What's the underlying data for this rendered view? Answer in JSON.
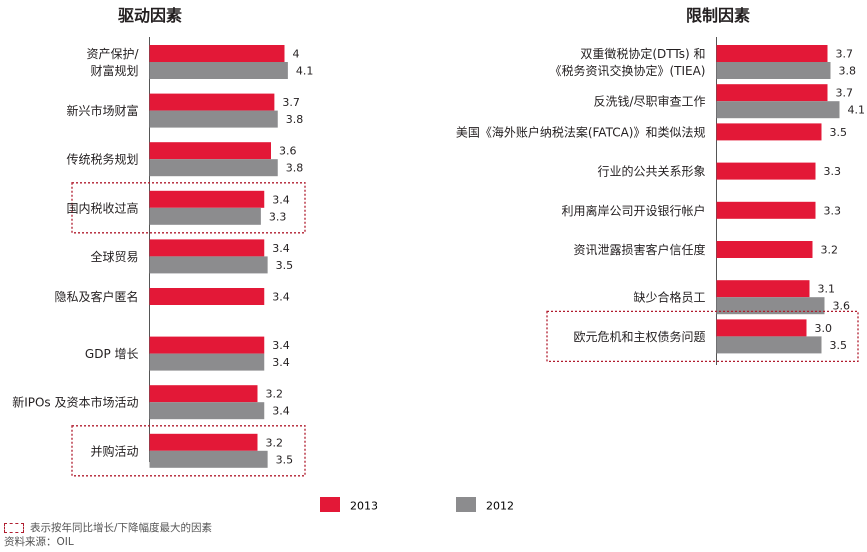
{
  "colors": {
    "series_2013": "#e31837",
    "series_2012": "#8c8c8e",
    "highlight": "#b01c2e",
    "axis": "#555555"
  },
  "legend": {
    "label_2013": "2013",
    "label_2012": "2012"
  },
  "footnote": {
    "highlight_note": "表示按年同比增长/下降幅度最大的因素",
    "source": "资料来源：OIL"
  },
  "chart_data": [
    {
      "type": "bar",
      "orientation": "horizontal",
      "title": "驱动因素",
      "categories": [
        [
          "资产保护/",
          "财富规划"
        ],
        [
          "新兴市场财富"
        ],
        [
          "传统税务规划"
        ],
        [
          "国内税收过高"
        ],
        [
          "全球贸易"
        ],
        [
          "隐私及客户匿名"
        ],
        [
          "GDP 增长"
        ],
        [
          "新IPOs 及资本市场活动"
        ],
        [
          "并购活动"
        ]
      ],
      "series": [
        {
          "name": "2013",
          "values": [
            4,
            3.7,
            3.6,
            3.4,
            3.4,
            3.4,
            3.4,
            3.2,
            3.2
          ]
        },
        {
          "name": "2012",
          "values": [
            4.1,
            3.8,
            3.8,
            3.3,
            3.5,
            null,
            3.4,
            3.4,
            3.5
          ]
        }
      ],
      "value_labels": {
        "2013": [
          "4",
          "3.7",
          "3.6",
          "3.4",
          "3.4",
          "3.4",
          "3.4",
          "3.2",
          "3.2"
        ],
        "2012": [
          "4.1",
          "3.8",
          "3.8",
          "3.3",
          "3.5",
          "",
          "3.4",
          "3.4",
          "3.5"
        ]
      },
      "highlighted": [
        3,
        8
      ],
      "xlim": [
        0,
        4.5
      ]
    },
    {
      "type": "bar",
      "orientation": "horizontal",
      "title": "限制因素",
      "categories": [
        [
          "双重徵税协定(DTTs) 和",
          "《税务资讯交换协定》(TIEA)"
        ],
        [
          "反洗钱/尽职审查工作"
        ],
        [
          "美国《海外账户纳税法案(FATCA)》和类似法规"
        ],
        [
          "行业的公共关系形象"
        ],
        [
          "利用离岸公司开设银行帐户"
        ],
        [
          "资讯泄露损害客户信任度"
        ],
        [
          "缺少合格员工"
        ],
        [
          "欧元危机和主权债务问题"
        ]
      ],
      "series": [
        {
          "name": "2013",
          "values": [
            3.7,
            3.7,
            3.5,
            3.3,
            3.3,
            3.2,
            3.1,
            3.0
          ]
        },
        {
          "name": "2012",
          "values": [
            3.8,
            4.1,
            null,
            null,
            null,
            null,
            3.6,
            3.5
          ]
        }
      ],
      "value_labels": {
        "2013": [
          "3.7",
          "3.7",
          "3.5",
          "3.3",
          "3.3",
          "3.2",
          "3.1",
          "3.0"
        ],
        "2012": [
          "3.8",
          "4.1",
          "",
          "",
          "",
          "",
          "3.6",
          "3.5"
        ]
      },
      "highlighted": [
        7
      ],
      "xlim": [
        0,
        4.5
      ]
    }
  ]
}
